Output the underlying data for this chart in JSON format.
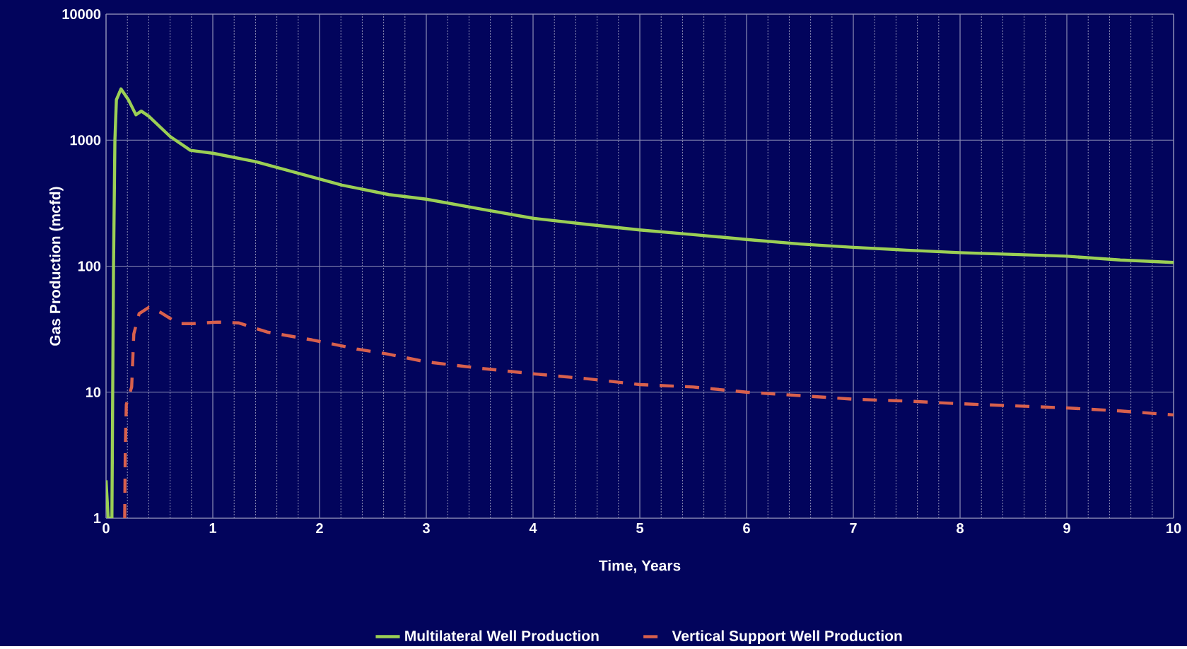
{
  "chart_data": {
    "type": "line",
    "xlabel": "Time, Years",
    "ylabel": "Gas Production (mcfd)",
    "xlim": [
      0,
      10
    ],
    "ylim": [
      1,
      10000
    ],
    "log": "y",
    "xticks": [
      0,
      {
        "value": 0.2,
        "label": null
      },
      {
        "value": 0.4,
        "label": null
      },
      {
        "value": 0.6,
        "label": null
      },
      {
        "value": 0.8,
        "label": null
      },
      1,
      {
        "value": 1.2,
        "label": null
      },
      {
        "value": 1.4,
        "label": null
      },
      {
        "value": 1.6,
        "label": null
      },
      {
        "value": 1.8,
        "label": null
      },
      2,
      {
        "value": 2.2,
        "label": null
      },
      {
        "value": 2.4,
        "label": null
      },
      {
        "value": 2.6,
        "label": null
      },
      {
        "value": 2.8,
        "label": null
      },
      3,
      {
        "value": 3.2,
        "label": null
      },
      {
        "value": 3.4,
        "label": null
      },
      {
        "value": 3.6,
        "label": null
      },
      {
        "value": 3.8,
        "label": null
      },
      4,
      {
        "value": 4.2,
        "label": null
      },
      {
        "value": 4.4,
        "label": null
      },
      {
        "value": 4.6,
        "label": null
      },
      {
        "value": 4.8,
        "label": null
      },
      5,
      {
        "value": 5.2,
        "label": null
      },
      {
        "value": 5.4,
        "label": null
      },
      {
        "value": 5.6,
        "label": null
      },
      {
        "value": 5.8,
        "label": null
      },
      6,
      {
        "value": 6.2,
        "label": null
      },
      {
        "value": 6.4,
        "label": null
      },
      {
        "value": 6.6,
        "label": null
      },
      {
        "value": 6.8,
        "label": null
      },
      7,
      {
        "value": 7.2,
        "label": null
      },
      {
        "value": 7.4,
        "label": null
      },
      {
        "value": 7.6,
        "label": null
      },
      {
        "value": 7.8,
        "label": null
      },
      8,
      {
        "value": 8.2,
        "label": null
      },
      {
        "value": 8.4,
        "label": null
      },
      {
        "value": 8.6,
        "label": null
      },
      {
        "value": 8.8,
        "label": null
      },
      9,
      {
        "value": 9.2,
        "label": null
      },
      {
        "value": 9.4,
        "label": null
      },
      {
        "value": 9.6,
        "label": null
      },
      {
        "value": 9.8,
        "label": null
      },
      10
    ],
    "yticks": [
      1,
      10,
      100,
      1000,
      10000
    ],
    "grid": true,
    "legend": "bottom",
    "marker": "none",
    "series": [
      {
        "name": "Multilateral Well Production",
        "color": "#9bcf55",
        "line_style": "solid",
        "x": [
          0,
          0.02,
          0.055,
          0.064,
          0.07,
          0.083,
          0.097,
          0.14,
          0.21,
          0.28,
          0.33,
          0.4,
          0.6,
          0.79,
          1.01,
          1.4,
          1.79,
          2.21,
          2.65,
          3,
          3.5,
          4,
          4.5,
          5,
          5.5,
          6,
          6.5,
          7,
          7.5,
          8,
          8.5,
          9,
          9.5,
          10
        ],
        "values": [
          2,
          1,
          1,
          17,
          100,
          1000,
          2090,
          2550,
          2090,
          1590,
          1700,
          1550,
          1070,
          830,
          785,
          675,
          550,
          440,
          370,
          340,
          285,
          240,
          215,
          194,
          178,
          163,
          150,
          141,
          134,
          128,
          124,
          120,
          112,
          107
        ]
      },
      {
        "name": "Vertical Support Well Production",
        "color": "#d8604d",
        "line_style": "dashed",
        "x": [
          0.175,
          0.18,
          0.19,
          0.24,
          0.26,
          0.31,
          0.4,
          0.51,
          0.68,
          0.81,
          1.04,
          1.24,
          1.51,
          1.93,
          2.35,
          2.65,
          3,
          3.5,
          4,
          4.5,
          5,
          5.5,
          6,
          6.5,
          7,
          7.5,
          8,
          8.5,
          9,
          9.5,
          10
        ],
        "values": [
          1,
          3.4,
          8,
          11,
          29,
          42,
          47,
          43,
          35,
          35,
          36,
          35.5,
          30,
          26,
          22,
          20,
          17.4,
          15.5,
          14,
          12.8,
          11.5,
          11,
          10,
          9.4,
          8.8,
          8.5,
          8.1,
          7.8,
          7.5,
          7.1,
          6.6
        ]
      }
    ]
  }
}
